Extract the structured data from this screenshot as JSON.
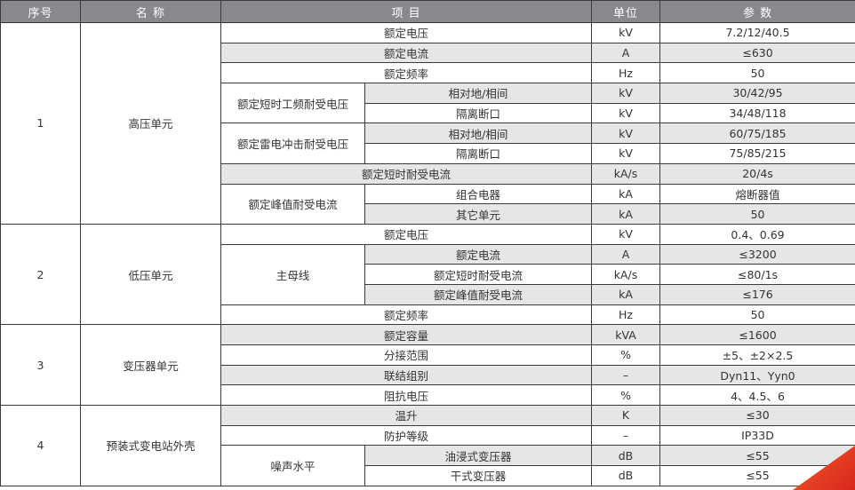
{
  "headers": [
    "序号",
    "名  称",
    "项  目",
    "单位",
    "参  数"
  ],
  "rows": [
    [
      "1",
      "高压单元",
      "额定电压",
      "kV",
      "7.2/12/40.5"
    ],
    [
      "额定电流",
      "A",
      "≤630"
    ],
    [
      "额定频率",
      "Hz",
      "50"
    ],
    [
      "额定短时工频耐受电压",
      "相对地/相间",
      "kV",
      "30/42/95"
    ],
    [
      "隔离断口",
      "kV",
      "34/48/118"
    ],
    [
      "额定雷电冲击耐受电压",
      "相对地/相间",
      "kV",
      "60/75/185"
    ],
    [
      "隔离断口",
      "kV",
      "75/85/215"
    ],
    [
      "额定短时耐受电流",
      "kA/s",
      "20/4s"
    ],
    [
      "额定峰值耐受电流",
      "组合电器",
      "kA",
      "熔断器值"
    ],
    [
      "其它单元",
      "kA",
      "50"
    ],
    [
      "2",
      "低压单元",
      "额定电压",
      "kV",
      "0.4、0.69"
    ],
    [
      "主母线",
      "额定电流",
      "A",
      "≤3200"
    ],
    [
      "额定短时耐受电流",
      "kA/s",
      "≤80/1s"
    ],
    [
      "额定峰值耐受电流",
      "kA",
      "≤176"
    ],
    [
      "额定频率",
      "Hz",
      "50"
    ],
    [
      "3",
      "变压器单元",
      "额定容量",
      "kVA",
      "≤1600"
    ],
    [
      "分接范围",
      "%",
      "±5、±2×2.5"
    ],
    [
      "联结组别",
      "–",
      "Dyn11、Yyn0"
    ],
    [
      "阻抗电压",
      "%",
      "4、4.5、6"
    ],
    [
      "4",
      "预装式变电站外壳",
      "温升",
      "K",
      "≤30"
    ],
    [
      "防护等级",
      "–",
      "IP33D"
    ],
    [
      "噪声水平",
      "油浸式变压器",
      "dB",
      "≤55"
    ],
    [
      "干式变压器",
      "dB",
      "≤55"
    ]
  ],
  "colors": {
    "header": "#88898c",
    "stripe": "#e5e6e8",
    "accent": "#e63a22"
  }
}
